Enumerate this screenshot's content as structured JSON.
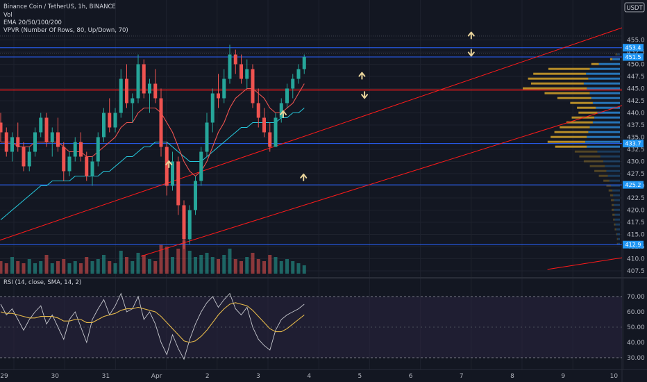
{
  "header": {
    "symbol_line": "Binance Coin / TetherUS, 1h, BINANCE",
    "vol_label": "Vol",
    "ema_label": "EMA 20/50/100/200",
    "vpvr_label": "VPVR (Number Of Rows, 80, Up/Down, 70)",
    "currency": "USDT",
    "rsi_label": "RSI (14, close, SMA, 14, 2)"
  },
  "colors": {
    "background": "#131722",
    "up_candle": "#26a69a",
    "down_candle": "#ef5350",
    "resistance_line": "#ff1a1a",
    "support_line": "#2962ff",
    "ema_fast": "#ef5350",
    "ema_slow": "#26c6da",
    "rsi_line": "#c6c8ce",
    "rsi_ma": "#e5b94a",
    "rsi_band": "#2a2440",
    "vp_up": "#2a7fc9",
    "vp_down": "#c99a2a",
    "arrow": "#e8d39a",
    "price_badge": "#2196f3"
  },
  "chart_data": {
    "type": "candlestick",
    "ylim": [
      406.5,
      457.5
    ],
    "price_ticks": [
      407.5,
      410.0,
      412.5,
      415.0,
      417.5,
      420.0,
      422.5,
      425.0,
      427.5,
      430.0,
      432.5,
      435.0,
      437.5,
      440.0,
      442.5,
      445.0,
      447.5,
      450.0,
      452.5,
      455.0
    ],
    "x_tick_labels": [
      "29",
      "30",
      "31",
      "Apr",
      "2",
      "3",
      "4",
      "5",
      "6",
      "7",
      "8",
      "9",
      "10"
    ],
    "horizontal_levels": [
      {
        "price": 453.4,
        "label": "453.4",
        "color": "#2962ff"
      },
      {
        "price": 451.5,
        "label": "451.5",
        "color": "#2962ff"
      },
      {
        "price": 444.7,
        "label": "",
        "color": "#ff1a1a"
      },
      {
        "price": 433.7,
        "label": "433.7",
        "color": "#2962ff"
      },
      {
        "price": 425.2,
        "label": "425.2",
        "color": "#2962ff"
      },
      {
        "price": 412.9,
        "label": "412.9",
        "color": "#2962ff"
      }
    ],
    "current_price": 451.5,
    "trend_lines": [
      {
        "from": [
          -0.5,
          413.0
        ],
        "to": [
          12.5,
          457.5
        ]
      },
      {
        "from": [
          2.5,
          410.5
        ],
        "to": [
          12.5,
          441.5
        ]
      },
      {
        "from": [
          10.5,
          407.8
        ],
        "to": [
          12.5,
          410.2
        ]
      }
    ],
    "arrows": [
      {
        "x": 9.0,
        "price": 456.0,
        "dir": "up"
      },
      {
        "x": 9.0,
        "price": 452.3,
        "dir": "down"
      },
      {
        "x": 6.85,
        "price": 447.7,
        "dir": "up"
      },
      {
        "x": 6.9,
        "price": 443.6,
        "dir": "down"
      },
      {
        "x": 5.3,
        "price": 439.8,
        "dir": "up"
      },
      {
        "x": 3.05,
        "price": 429.5,
        "dir": "up"
      },
      {
        "x": 5.7,
        "price": 426.8,
        "dir": "up"
      }
    ],
    "candles": [
      [
        438,
        440,
        434,
        436
      ],
      [
        436,
        437,
        431,
        432
      ],
      [
        432,
        436,
        430,
        435
      ],
      [
        435,
        438,
        432,
        433
      ],
      [
        433,
        434,
        428,
        429
      ],
      [
        429,
        433,
        428,
        432
      ],
      [
        432,
        437,
        431,
        436
      ],
      [
        436,
        440,
        435,
        439
      ],
      [
        439,
        440,
        433,
        434
      ],
      [
        434,
        437,
        431,
        436
      ],
      [
        436,
        439,
        432,
        433
      ],
      [
        433,
        434,
        426,
        428
      ],
      [
        428,
        432,
        427,
        431
      ],
      [
        431,
        435,
        430,
        434
      ],
      [
        434,
        436,
        430,
        431
      ],
      [
        431,
        432,
        426,
        427
      ],
      [
        427,
        431,
        425,
        430
      ],
      [
        430,
        436,
        429,
        435
      ],
      [
        435,
        441,
        434,
        440
      ],
      [
        440,
        443,
        436,
        437
      ],
      [
        437,
        441,
        436,
        440
      ],
      [
        440,
        449,
        439,
        447
      ],
      [
        447,
        450,
        441,
        442
      ],
      [
        442,
        444,
        438,
        443
      ],
      [
        443,
        452,
        442,
        450
      ],
      [
        450,
        451,
        443,
        444
      ],
      [
        444,
        447,
        440,
        446
      ],
      [
        446,
        449,
        442,
        443
      ],
      [
        443,
        445,
        431,
        433
      ],
      [
        433,
        434,
        423,
        425
      ],
      [
        425,
        432,
        424,
        430
      ],
      [
        430,
        431,
        419,
        421
      ],
      [
        421,
        422,
        412,
        414
      ],
      [
        414,
        421,
        413,
        420
      ],
      [
        420,
        427,
        419,
        426
      ],
      [
        426,
        433,
        425,
        432
      ],
      [
        432,
        440,
        431,
        438
      ],
      [
        438,
        445,
        436,
        444
      ],
      [
        444,
        448,
        441,
        443
      ],
      [
        443,
        449,
        442,
        447
      ],
      [
        447,
        454,
        446,
        452
      ],
      [
        452,
        453,
        448,
        450
      ],
      [
        450,
        452,
        446,
        447
      ],
      [
        447,
        451,
        445,
        449
      ],
      [
        449,
        450,
        441,
        442
      ],
      [
        442,
        445,
        437,
        439
      ],
      [
        439,
        441,
        435,
        436
      ],
      [
        436,
        438,
        432,
        433
      ],
      [
        433,
        440,
        433,
        439
      ],
      [
        439,
        443,
        438,
        442
      ],
      [
        442,
        446,
        441,
        445
      ],
      [
        445,
        448,
        443,
        447
      ],
      [
        447,
        450,
        446,
        449
      ],
      [
        449,
        452,
        448,
        451.5
      ]
    ],
    "volumes": [
      6,
      5,
      8,
      6,
      5,
      7,
      5,
      6,
      9,
      5,
      6,
      7,
      5,
      6,
      5,
      8,
      6,
      7,
      9,
      6,
      5,
      11,
      8,
      6,
      10,
      9,
      7,
      6,
      14,
      13,
      8,
      12,
      16,
      11,
      8,
      9,
      10,
      8,
      7,
      9,
      12,
      7,
      6,
      8,
      10,
      7,
      6,
      9,
      8,
      6,
      7,
      6,
      5,
      4
    ],
    "ema_fast": [
      434,
      434,
      434,
      433,
      433,
      433,
      434,
      434,
      434,
      434,
      434,
      433,
      432,
      432,
      432,
      431,
      431,
      432,
      433,
      434,
      435,
      437,
      438,
      438,
      440,
      441,
      441,
      441,
      440,
      438,
      436,
      433,
      430,
      428,
      427,
      428,
      430,
      433,
      436,
      438,
      441,
      443,
      444,
      445,
      445,
      444,
      443,
      441,
      440,
      440,
      441,
      442,
      444,
      446
    ],
    "ema_slow": [
      418,
      419,
      420,
      421,
      422,
      423,
      424,
      425,
      425,
      426,
      426,
      426,
      426,
      427,
      427,
      427,
      427,
      427,
      428,
      428,
      429,
      430,
      431,
      431,
      432,
      433,
      433,
      434,
      434,
      434,
      433,
      432,
      431,
      430,
      430,
      430,
      431,
      432,
      433,
      434,
      435,
      436,
      437,
      437,
      438,
      438,
      438,
      438,
      438,
      439,
      439,
      440,
      440,
      441
    ],
    "volume_profile": [
      {
        "price": 452.0,
        "up": 4,
        "down": 2
      },
      {
        "price": 451.0,
        "up": 10,
        "down": 3
      },
      {
        "price": 450.0,
        "up": 28,
        "down": 10
      },
      {
        "price": 449.0,
        "up": 40,
        "down": 55
      },
      {
        "price": 448.0,
        "up": 45,
        "down": 70
      },
      {
        "price": 447.0,
        "up": 42,
        "down": 80
      },
      {
        "price": 446.0,
        "up": 48,
        "down": 70
      },
      {
        "price": 445.0,
        "up": 44,
        "down": 85
      },
      {
        "price": 444.0,
        "up": 40,
        "down": 60
      },
      {
        "price": 443.0,
        "up": 38,
        "down": 45
      },
      {
        "price": 442.0,
        "up": 36,
        "down": 30
      },
      {
        "price": 441.0,
        "up": 32,
        "down": 25
      },
      {
        "price": 440.0,
        "up": 30,
        "down": 25
      },
      {
        "price": 439.0,
        "up": 34,
        "down": 30
      },
      {
        "price": 438.0,
        "up": 36,
        "down": 35
      },
      {
        "price": 437.0,
        "up": 40,
        "down": 40
      },
      {
        "price": 436.0,
        "up": 42,
        "down": 45
      },
      {
        "price": 435.0,
        "up": 44,
        "down": 48
      },
      {
        "price": 434.0,
        "up": 46,
        "down": 50
      },
      {
        "price": 433.0,
        "up": 44,
        "down": 42
      },
      {
        "price": 432.0,
        "up": 30,
        "down": 30
      },
      {
        "price": 431.0,
        "up": 26,
        "down": 28
      },
      {
        "price": 430.0,
        "up": 22,
        "down": 26
      },
      {
        "price": 429.0,
        "up": 20,
        "down": 20
      },
      {
        "price": 428.0,
        "up": 18,
        "down": 16
      },
      {
        "price": 427.0,
        "up": 16,
        "down": 12
      },
      {
        "price": 426.0,
        "up": 14,
        "down": 8
      },
      {
        "price": 425.0,
        "up": 12,
        "down": 6
      },
      {
        "price": 424.0,
        "up": 10,
        "down": 5
      },
      {
        "price": 423.0,
        "up": 9,
        "down": 4
      },
      {
        "price": 422.0,
        "up": 8,
        "down": 4
      },
      {
        "price": 421.0,
        "up": 8,
        "down": 3
      },
      {
        "price": 420.0,
        "up": 8,
        "down": 3
      },
      {
        "price": 419.0,
        "up": 7,
        "down": 3
      },
      {
        "price": 418.0,
        "up": 7,
        "down": 2
      },
      {
        "price": 417.0,
        "up": 6,
        "down": 2
      },
      {
        "price": 416.0,
        "up": 5,
        "down": 2
      },
      {
        "price": 415.0,
        "up": 4,
        "down": 1
      },
      {
        "price": 414.0,
        "up": 3,
        "down": 1
      },
      {
        "price": 413.0,
        "up": 3,
        "down": 1
      }
    ],
    "rsi": {
      "ylim": [
        25,
        75
      ],
      "ticks": [
        30.0,
        40.0,
        50.0,
        60.0,
        70.0
      ],
      "band": [
        30,
        70
      ],
      "values": [
        65,
        58,
        62,
        55,
        48,
        55,
        60,
        64,
        52,
        58,
        50,
        42,
        55,
        60,
        50,
        40,
        55,
        62,
        68,
        58,
        64,
        72,
        60,
        62,
        70,
        55,
        60,
        52,
        40,
        32,
        45,
        36,
        29,
        42,
        52,
        60,
        66,
        70,
        63,
        68,
        72,
        62,
        58,
        63,
        50,
        42,
        38,
        35,
        48,
        55,
        58,
        60,
        62,
        65
      ],
      "ma": [
        60,
        59,
        59,
        58,
        57,
        56,
        56,
        57,
        57,
        57,
        56,
        54,
        54,
        55,
        55,
        53,
        53,
        55,
        57,
        58,
        59,
        61,
        62,
        62,
        63,
        62,
        61,
        60,
        57,
        53,
        49,
        45,
        41,
        40,
        41,
        44,
        48,
        53,
        58,
        62,
        65,
        66,
        65,
        64,
        61,
        57,
        53,
        49,
        47,
        47,
        49,
        52,
        55,
        58
      ]
    }
  }
}
